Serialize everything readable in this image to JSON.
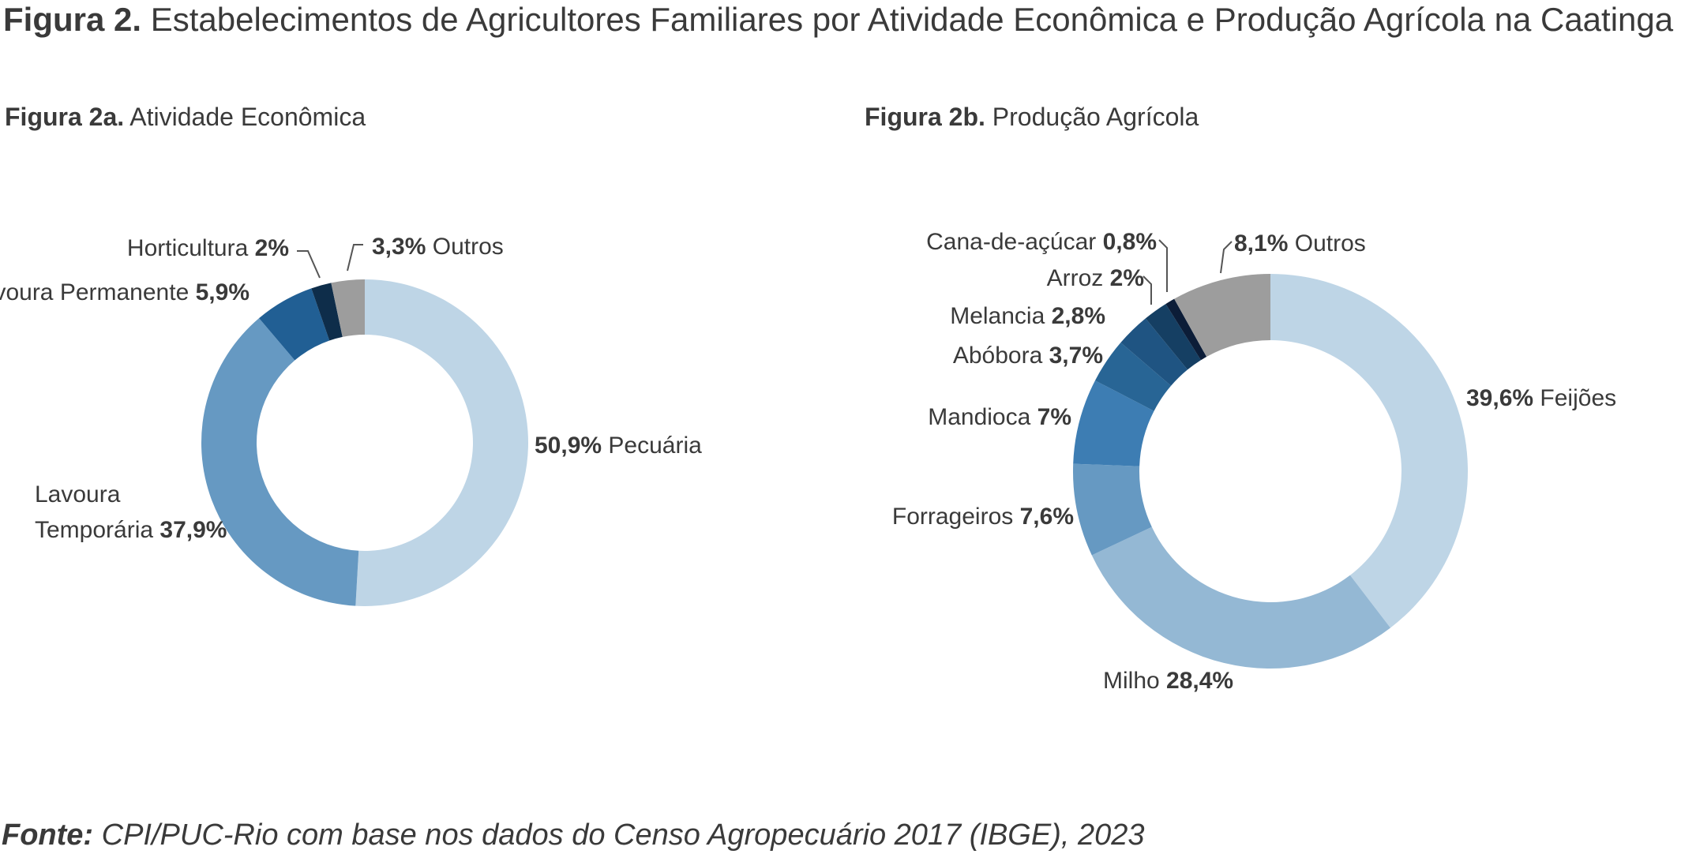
{
  "title": {
    "prefix": "Figura 2.",
    "text": "Estabelecimentos de Agricultores Familiares por Atividade Econômica e Produção Agrícola na Caatinga"
  },
  "source": {
    "prefix": "Fonte:",
    "text": "CPI/PUC-Rio com base nos dados do Censo Agropecuário 2017 (IBGE), 2023"
  },
  "chart_data": [
    {
      "type": "pie",
      "variant": "donut",
      "title_prefix": "Figura 2a.",
      "title": "Atividade Econômica",
      "slices": [
        {
          "name": "Pecuária",
          "value": 50.9,
          "label": "50,9%",
          "color": "#bed5e6"
        },
        {
          "name": "Lavoura Temporária",
          "value": 37.9,
          "label": "37,9%",
          "color": "#6699c2"
        },
        {
          "name": "Lavoura Permanente",
          "value": 5.9,
          "label": "5,9%",
          "color": "#215f94"
        },
        {
          "name": "Horticultura",
          "value": 2,
          "label": "2%",
          "color": "#0e2d4a"
        },
        {
          "name": "Outros",
          "value": 3.3,
          "label": "3,3%",
          "color": "#9d9d9d"
        }
      ]
    },
    {
      "type": "pie",
      "variant": "donut",
      "title_prefix": "Figura 2b.",
      "title": "Produção Agrícola",
      "slices": [
        {
          "name": "Feijões",
          "value": 39.6,
          "label": "39,6%",
          "color": "#bed5e6"
        },
        {
          "name": "Milho",
          "value": 28.4,
          "label": "28,4%",
          "color": "#94b8d4"
        },
        {
          "name": "Forrageiros",
          "value": 7.6,
          "label": "7,6%",
          "color": "#6699c2"
        },
        {
          "name": "Mandioca",
          "value": 7,
          "label": "7%",
          "color": "#3d7db3"
        },
        {
          "name": "Abóbora",
          "value": 3.7,
          "label": "3,7%",
          "color": "#286595"
        },
        {
          "name": "Melancia",
          "value": 2.8,
          "label": "2,8%",
          "color": "#1f5482"
        },
        {
          "name": "Arroz",
          "value": 2,
          "label": "2%",
          "color": "#153f63"
        },
        {
          "name": "Cana-de-açúcar",
          "value": 0.8,
          "label": "0,8%",
          "color": "#0c1d38"
        },
        {
          "name": "Outros",
          "value": 8.1,
          "label": "8,1%",
          "color": "#9d9d9d"
        }
      ]
    }
  ]
}
